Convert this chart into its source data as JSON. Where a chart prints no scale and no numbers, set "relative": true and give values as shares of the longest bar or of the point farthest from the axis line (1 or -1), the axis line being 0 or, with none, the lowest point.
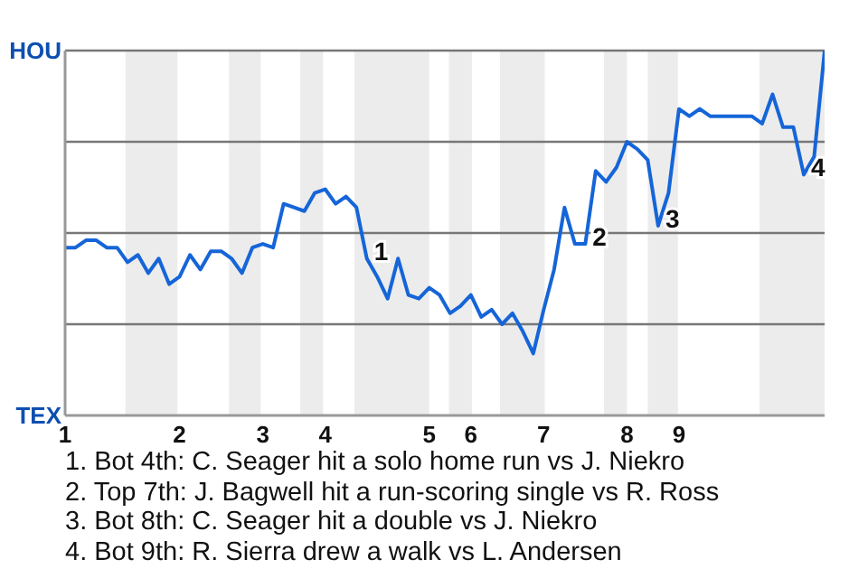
{
  "chart_data": {
    "type": "line",
    "relative": true,
    "categories": [
      "1",
      null,
      null,
      null,
      null,
      null,
      null,
      null,
      null,
      null,
      null,
      "2",
      null,
      null,
      null,
      null,
      null,
      null,
      null,
      "3",
      null,
      null,
      null,
      null,
      null,
      "4",
      null,
      null,
      null,
      null,
      null,
      null,
      null,
      null,
      null,
      "5",
      null,
      null,
      null,
      "6",
      null,
      null,
      null,
      null,
      null,
      null,
      "7",
      null,
      null,
      null,
      null,
      null,
      null,
      null,
      "8",
      null,
      null,
      null,
      null,
      "9",
      null,
      null,
      null,
      null,
      null,
      null,
      null,
      null,
      null,
      null,
      null,
      null,
      null,
      null
    ],
    "series": [
      {
        "color": "#1565d8",
        "values": [
          0.46,
          0.46,
          0.48,
          0.48,
          0.46,
          0.46,
          0.42,
          0.44,
          0.39,
          0.43,
          0.36,
          0.38,
          0.44,
          0.4,
          0.45,
          0.45,
          0.43,
          0.39,
          0.46,
          0.47,
          0.46,
          0.58,
          0.57,
          0.56,
          0.61,
          0.62,
          0.58,
          0.6,
          0.57,
          0.43,
          0.38,
          0.32,
          0.43,
          0.33,
          0.32,
          0.35,
          0.33,
          0.28,
          0.3,
          0.33,
          0.27,
          0.29,
          0.25,
          0.28,
          0.23,
          0.17,
          0.29,
          0.4,
          0.57,
          0.47,
          0.47,
          0.67,
          0.64,
          0.68,
          0.75,
          0.73,
          0.7,
          0.52,
          0.61,
          0.84,
          0.82,
          0.84,
          0.82,
          0.82,
          0.82,
          0.82,
          0.82,
          0.8,
          0.88,
          0.79,
          0.79,
          0.66,
          0.71,
          1
        ]
      }
    ],
    "grid": "y",
    "marker": "none",
    "annotations": [
      "HOU",
      "TEX",
      "1",
      "2",
      "3",
      "4",
      "1. Bot 4th: C. Seager hit a solo home run vs J. Niekro",
      "2. Top 7th: J. Bagwell hit a run-scoring single vs R. Ross",
      "3. Bot 8th: C. Seager hit a double vs J. Niekro",
      "4. Bot 9th: R. Sierra drew a walk vs L. Andersen"
    ]
  }
}
